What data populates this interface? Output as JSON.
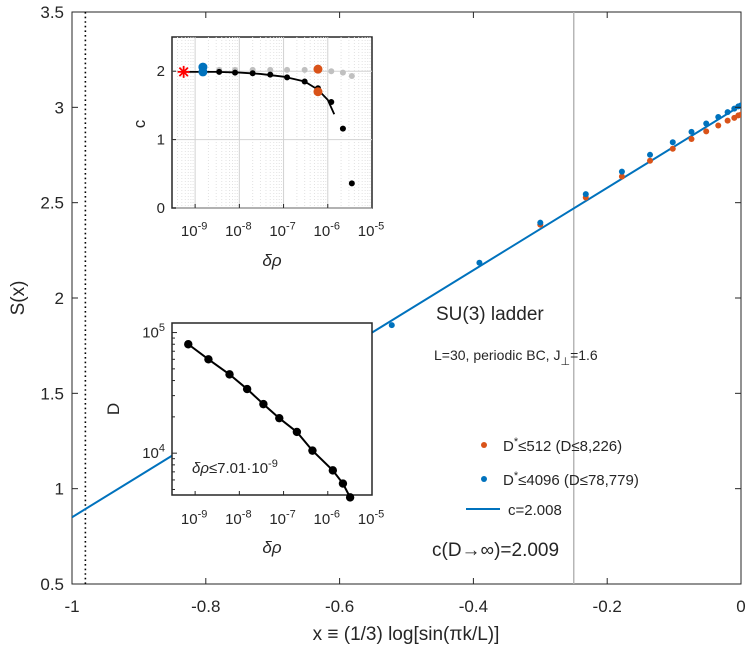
{
  "chart_data": [
    {
      "type": "scatter",
      "xlabel": "x ≡ (1/3) log[sin(πk/L)]",
      "ylabel": "S(x)",
      "xlim": [
        -1,
        0
      ],
      "ylim": [
        0.5,
        3.5
      ],
      "xticks": [
        -1,
        -0.8,
        -0.6,
        -0.4,
        -0.2,
        0
      ],
      "xtick_labels": [
        "-1",
        "-0.8",
        "-0.6",
        "-0.4",
        "-0.2",
        "0"
      ],
      "yticks": [
        0.5,
        1,
        1.5,
        2,
        2.5,
        3,
        3.5
      ],
      "ytick_labels": [
        "0.5",
        "1",
        "1.5",
        "2",
        "2.5",
        "3",
        "3.5"
      ],
      "grid": false,
      "vlines": [
        {
          "x": -0.98,
          "style": "dotted",
          "color": "#000000"
        },
        {
          "x": -0.25,
          "style": "solid",
          "color": "#b3b3b3"
        }
      ],
      "series": [
        {
          "name": "D*≤512 (D≤8,226)",
          "kind": "points",
          "color": "#d95319",
          "x": [
            -0.3,
            -0.232,
            -0.178,
            -0.136,
            -0.102,
            -0.074,
            -0.052,
            -0.034,
            -0.02,
            -0.01,
            -0.004,
            0
          ],
          "y": [
            2.385,
            2.527,
            2.637,
            2.72,
            2.783,
            2.834,
            2.874,
            2.905,
            2.93,
            2.945,
            2.958,
            2.962
          ]
        },
        {
          "name": "D*≤4096 (D≤78,779)",
          "kind": "points",
          "color": "#0072bd",
          "x": [
            -0.522,
            -0.391,
            -0.3,
            -0.232,
            -0.178,
            -0.136,
            -0.102,
            -0.074,
            -0.052,
            -0.034,
            -0.02,
            -0.01,
            -0.004,
            0
          ],
          "y": [
            1.858,
            2.185,
            2.395,
            2.545,
            2.663,
            2.751,
            2.817,
            2.871,
            2.915,
            2.949,
            2.975,
            2.993,
            3.005,
            3.01
          ]
        },
        {
          "name": "c=2.008",
          "kind": "line",
          "color": "#0072bd",
          "x": [
            -1,
            0
          ],
          "y": [
            0.85,
            3.01
          ]
        }
      ],
      "legend_position": "bottom-right",
      "annotations": [
        "SU(3) ladder",
        "L=30, periodic BC, J⊥=1.6",
        "c(D→∞)=2.009"
      ]
    },
    {
      "type": "scatter",
      "xlabel": "δρ",
      "ylabel": "c",
      "xscale": "log",
      "xlim": [
        3e-10,
        1e-05
      ],
      "ylim": [
        0,
        2.5
      ],
      "xticks": [
        1e-09,
        1e-08,
        1e-07,
        1e-06,
        1e-05
      ],
      "xtick_labels": [
        {
          "base": "10",
          "exp": "-9"
        },
        {
          "base": "10",
          "exp": "-8"
        },
        {
          "base": "10",
          "exp": "-7"
        },
        {
          "base": "10",
          "exp": "-6"
        },
        {
          "base": "10",
          "exp": "-5"
        }
      ],
      "yticks": [
        0,
        1,
        2
      ],
      "ytick_labels": [
        "0",
        "1",
        "2"
      ],
      "grid": true,
      "series": [
        {
          "name": "grey",
          "kind": "points",
          "color": "#c0c0c0",
          "x": [
            1.5e-09,
            3.5e-09,
            8e-09,
            2e-08,
            5e-08,
            1.2e-07,
            3e-07,
            6e-07,
            1.2e-06,
            2.2e-06,
            3.5e-06
          ],
          "y": [
            2.02,
            2.02,
            2.02,
            2.02,
            2.02,
            2.02,
            2.02,
            2.02,
            2.0,
            1.98,
            1.93
          ]
        },
        {
          "name": "black",
          "kind": "points",
          "color": "#000000",
          "x": [
            1.5e-09,
            3.5e-09,
            8e-09,
            2e-08,
            5e-08,
            1.2e-07,
            3e-07,
            6e-07,
            1.2e-06,
            2.2e-06,
            3.5e-06
          ],
          "y": [
            1.99,
            1.99,
            1.98,
            1.97,
            1.95,
            1.91,
            1.85,
            1.75,
            1.55,
            1.16,
            0.36
          ]
        },
        {
          "name": "fit",
          "kind": "line",
          "color": "#000000",
          "x": [
            5e-10,
            1e-09,
            3e-09,
            1e-08,
            3e-08,
            1e-07,
            3e-07,
            6e-07,
            1e-06,
            1.4e-06
          ],
          "y": [
            1.99,
            1.99,
            1.99,
            1.98,
            1.96,
            1.92,
            1.85,
            1.73,
            1.58,
            1.37
          ]
        },
        {
          "name": "blue",
          "kind": "points",
          "color": "#0072bd",
          "size": "large",
          "x": [
            1.5e-09,
            1.5e-09
          ],
          "y": [
            2.06,
            1.99
          ]
        },
        {
          "name": "orange",
          "kind": "points",
          "color": "#d95319",
          "size": "large",
          "x": [
            6e-07,
            6e-07
          ],
          "y": [
            2.03,
            1.7
          ]
        },
        {
          "name": "extrapolated",
          "kind": "star",
          "color": "#ff0000",
          "x": [
            5.5e-10
          ],
          "y": [
            1.99
          ]
        }
      ]
    },
    {
      "type": "line",
      "xlabel": "δρ",
      "ylabel": "D",
      "xscale": "log",
      "yscale": "log",
      "xlim": [
        3e-10,
        1e-05
      ],
      "ylim": [
        4500,
        120000
      ],
      "xticks": [
        1e-09,
        1e-08,
        1e-07,
        1e-06,
        1e-05
      ],
      "xtick_labels": [
        {
          "base": "10",
          "exp": "-9"
        },
        {
          "base": "10",
          "exp": "-8"
        },
        {
          "base": "10",
          "exp": "-7"
        },
        {
          "base": "10",
          "exp": "-6"
        },
        {
          "base": "10",
          "exp": "-5"
        }
      ],
      "yticks": [
        10000,
        100000
      ],
      "ytick_labels": [
        {
          "base": "10",
          "exp": "4"
        },
        {
          "base": "10",
          "exp": "5"
        }
      ],
      "grid": false,
      "series": [
        {
          "name": "D",
          "kind": "line+points",
          "color": "#000000",
          "x": [
            7e-10,
            2e-09,
            6e-09,
            1.5e-08,
            3.5e-08,
            8e-08,
            2e-07,
            4.5e-07,
            1.3e-06,
            2.2e-06,
            3.2e-06
          ],
          "y": [
            80000,
            60000,
            45000,
            34000,
            25500,
            19500,
            15000,
            10500,
            7200,
            5600,
            4300
          ]
        }
      ],
      "annotations": [
        "δρ≤7.01·10-9"
      ]
    }
  ]
}
